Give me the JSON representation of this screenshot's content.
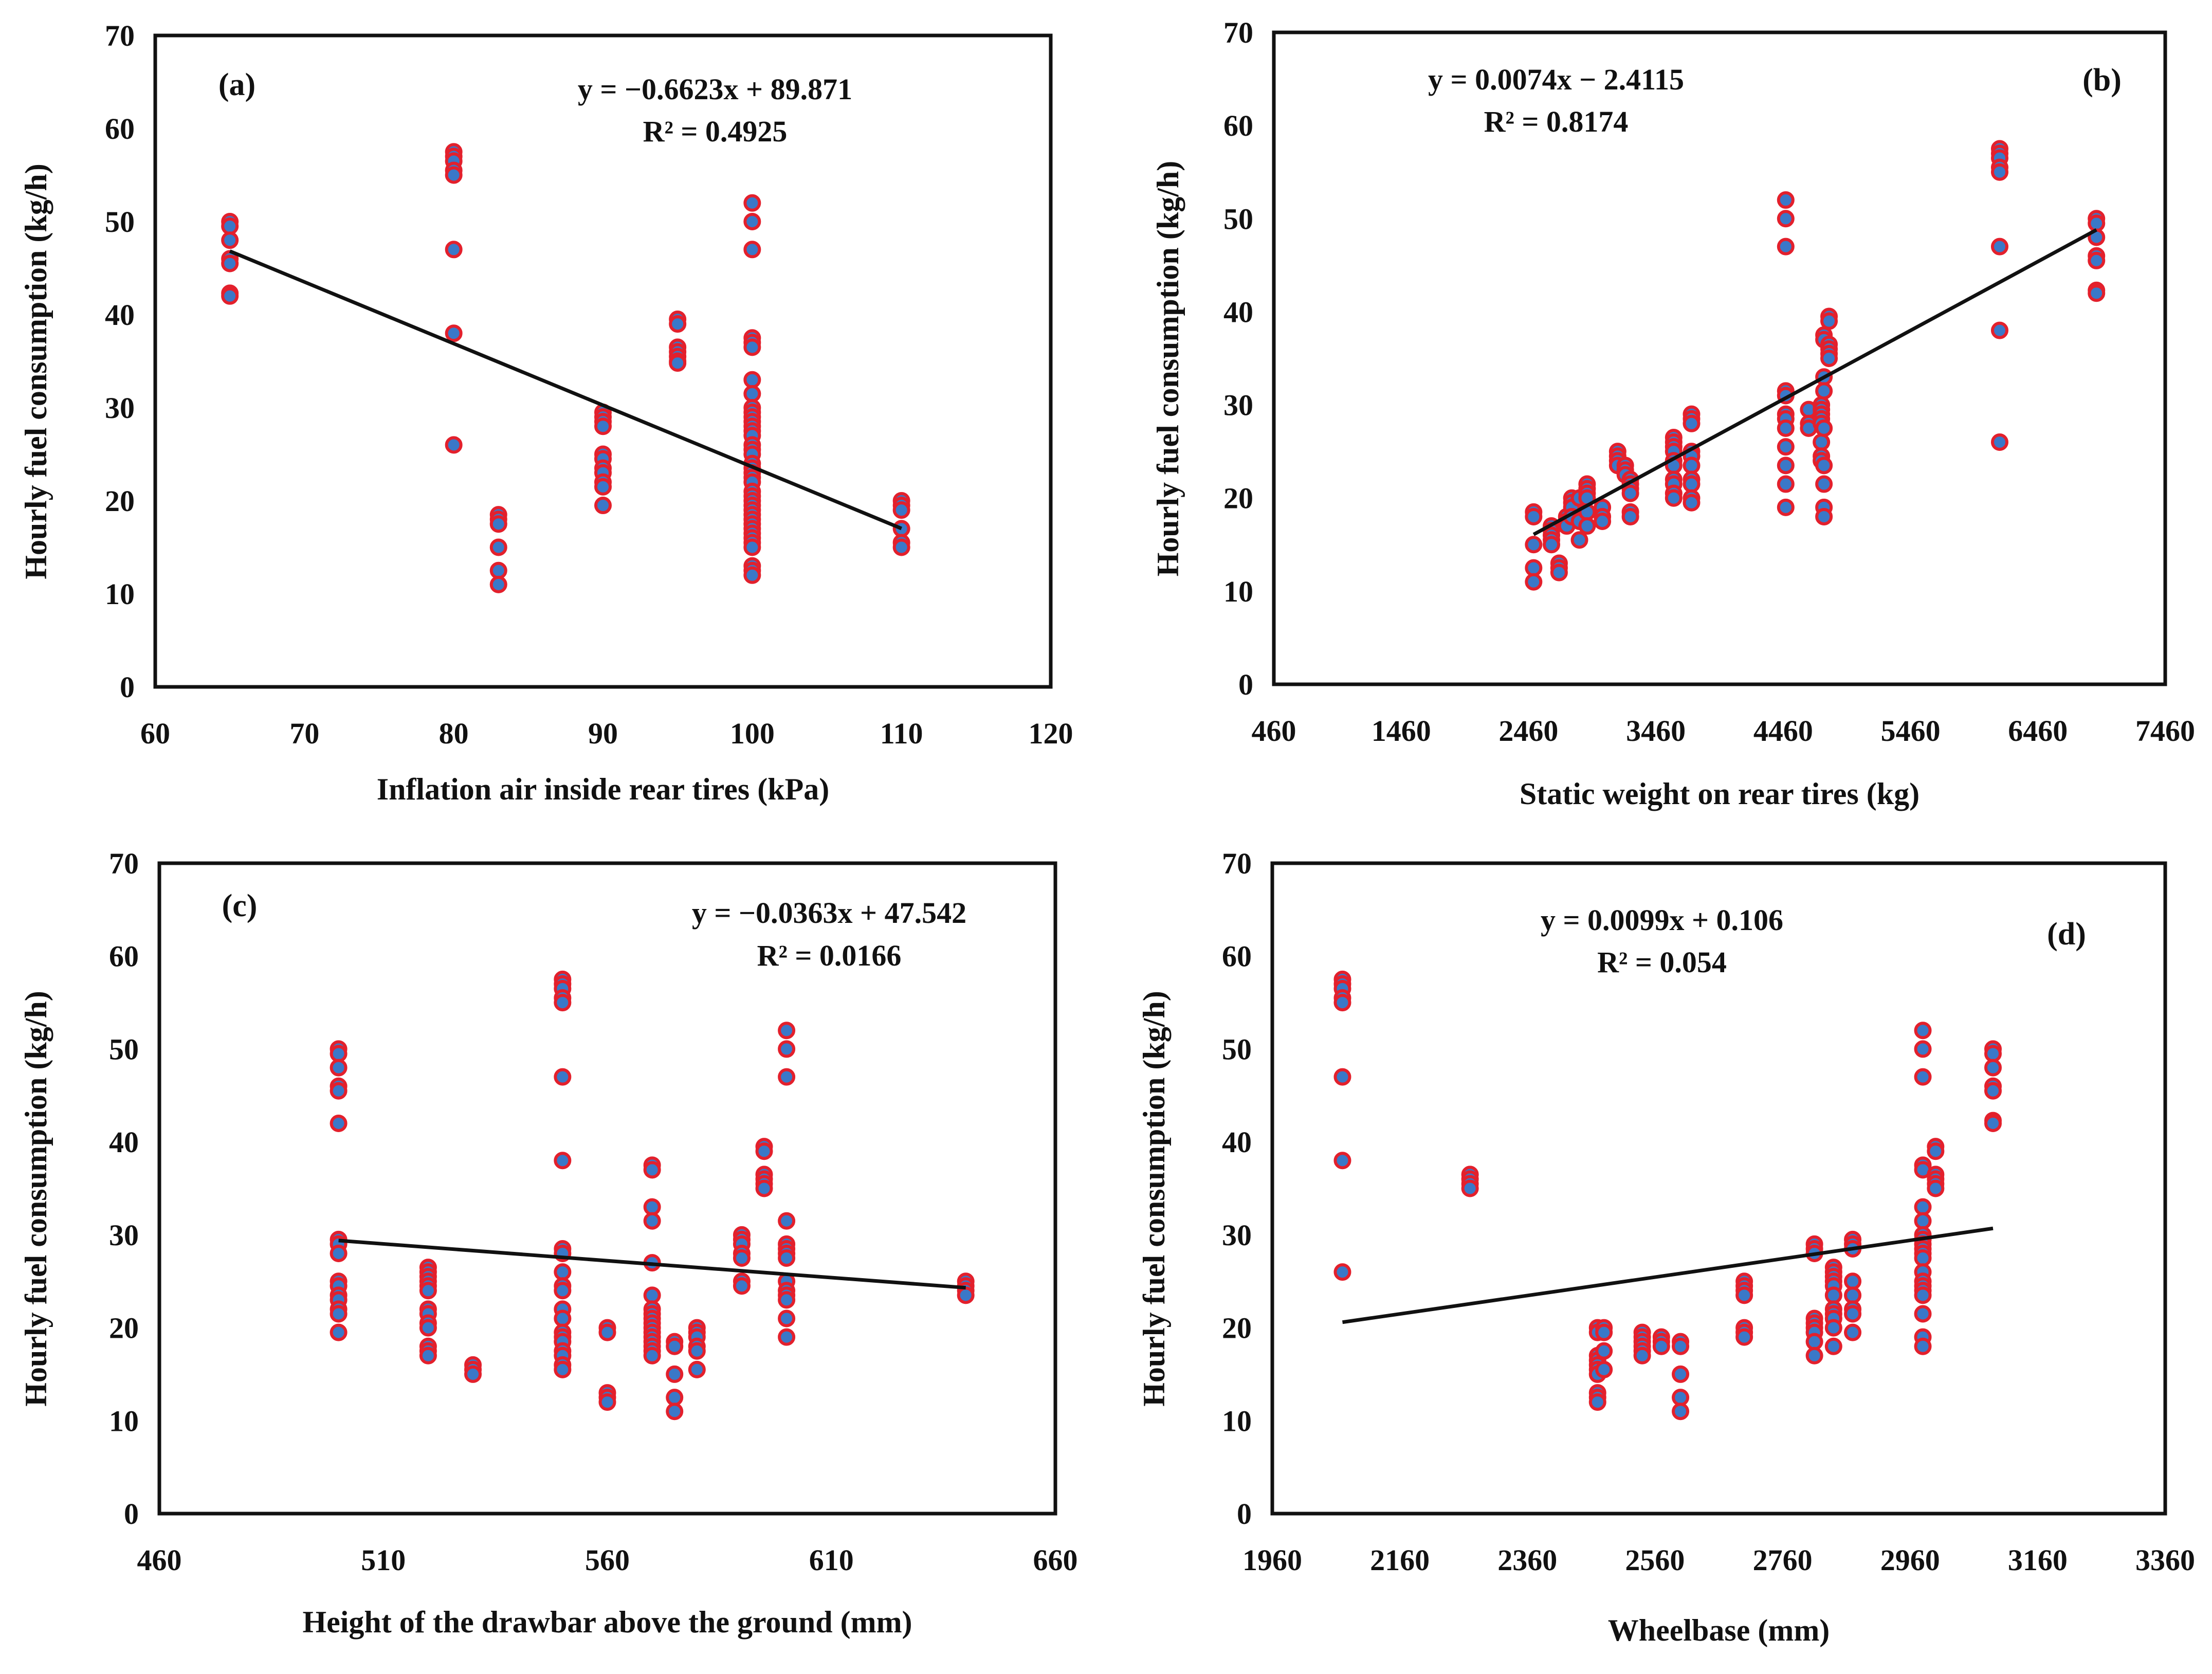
{
  "colors": {
    "marker_fill": "#3a78c8",
    "marker_stroke": "#e3202c",
    "trendline": "#111111",
    "frame": "#111111"
  },
  "chart_data": [
    {
      "type": "scatter",
      "panel_label": "(a)",
      "xlabel": "Inflation air inside rear tires (kPa)",
      "ylabel": "Hourly fuel consumption (kg/h)",
      "xlim": [
        60,
        120
      ],
      "ylim": [
        0,
        70
      ],
      "xticks": [
        "60",
        "70",
        "80",
        "90",
        "100",
        "110",
        "120"
      ],
      "yticks": [
        "0",
        "10",
        "20",
        "30",
        "40",
        "50",
        "60",
        "70"
      ],
      "equation": "y = −0.6623x + 89.871",
      "r2": "R² = 0.4925",
      "trend": {
        "slope": -0.6623,
        "intercept": 89.871,
        "x_range": [
          65,
          110
        ]
      },
      "points": [
        [
          65,
          [
            50,
            49.5,
            48,
            46,
            45.5,
            42.3,
            42
          ]
        ],
        [
          80,
          [
            57.5,
            57,
            56.5,
            55.5,
            55,
            47,
            38,
            26
          ]
        ],
        [
          83,
          [
            18.5,
            18,
            17.5,
            15,
            12.5,
            11
          ]
        ],
        [
          90,
          [
            29.5,
            29,
            28.5,
            28,
            25,
            24.5,
            23.5,
            23,
            22,
            21.5,
            19.5
          ]
        ],
        [
          95,
          [
            39.5,
            39,
            36.5,
            36,
            35.5,
            35,
            34.8
          ]
        ],
        [
          100,
          [
            52,
            50,
            47,
            37.5,
            37,
            36.5,
            33,
            31.5,
            30,
            29.5,
            29,
            28.5,
            28,
            27.5,
            27,
            26,
            25.5,
            25,
            24,
            23.5,
            23,
            22.5,
            22,
            21,
            20.5,
            20,
            19.5,
            19,
            18.5,
            18,
            17.5,
            17,
            16.5,
            16,
            15.5,
            15,
            13,
            12.5,
            12
          ]
        ],
        [
          110,
          [
            20,
            19.5,
            19,
            17,
            15.5,
            15
          ]
        ]
      ]
    },
    {
      "type": "scatter",
      "panel_label": "(b)",
      "xlabel": "Static weight on rear tires (kg)",
      "ylabel": "Hourly fuel consumption (kg/h)",
      "xlim": [
        460,
        7460
      ],
      "ylim": [
        0,
        70
      ],
      "xticks": [
        "460",
        "1460",
        "2460",
        "3460",
        "4460",
        "5460",
        "6460",
        "7460"
      ],
      "yticks": [
        "0",
        "10",
        "20",
        "30",
        "40",
        "50",
        "60",
        "70"
      ],
      "equation": "y = 0.0074x − 2.4115",
      "r2": "R² = 0.8174",
      "trend": {
        "slope": 0.0074,
        "intercept": -2.4115,
        "x_range": [
          2500,
          6920
        ]
      },
      "points": [
        [
          2500,
          [
            18.5,
            18,
            15,
            12.5,
            11
          ]
        ],
        [
          2640,
          [
            17,
            16.5,
            16,
            15.5,
            15
          ]
        ],
        [
          2700,
          [
            13,
            12.5,
            12
          ]
        ],
        [
          2760,
          [
            18,
            17.5,
            17
          ]
        ],
        [
          2800,
          [
            20,
            19.5,
            19,
            18
          ]
        ],
        [
          2860,
          [
            20,
            17.5,
            15.5
          ]
        ],
        [
          2920,
          [
            21.5,
            21,
            20.5,
            20,
            18.5,
            17
          ]
        ],
        [
          3040,
          [
            19,
            18,
            17.5
          ]
        ],
        [
          3160,
          [
            25,
            24.5,
            24,
            23.5
          ]
        ],
        [
          3220,
          [
            23.5,
            23,
            22.5
          ]
        ],
        [
          3260,
          [
            22,
            21.5,
            21,
            20.5,
            18.5,
            18
          ]
        ],
        [
          3600,
          [
            26.5,
            26,
            25.5,
            25,
            24,
            23.5,
            22,
            21.5,
            20.5,
            20
          ]
        ],
        [
          3740,
          [
            29,
            28.5,
            28,
            25,
            24.5,
            23.5,
            22,
            21.5,
            20,
            19.5
          ]
        ],
        [
          4480,
          [
            52,
            50,
            47,
            31.5,
            31,
            29,
            28.5,
            27.5,
            25.5,
            23.5,
            21.5,
            19
          ]
        ],
        [
          4660,
          [
            29.5,
            28,
            27.5
          ]
        ],
        [
          4760,
          [
            30,
            29.5,
            29,
            28.5,
            28,
            26,
            24.5,
            24
          ]
        ],
        [
          4780,
          [
            37.5,
            37,
            33,
            31.5,
            27.5,
            23.5,
            21.5,
            19,
            18
          ]
        ],
        [
          4820,
          [
            39.5,
            39,
            36.5,
            36,
            35.5,
            35
          ]
        ],
        [
          6160,
          [
            57.5,
            57,
            56.5,
            55.5,
            55,
            47,
            38,
            26
          ]
        ],
        [
          6920,
          [
            50,
            49.5,
            48,
            46,
            45.5,
            42.3,
            42
          ]
        ]
      ]
    },
    {
      "type": "scatter",
      "panel_label": "(c)",
      "xlabel": "Height of the drawbar above the ground (mm)",
      "ylabel": "Hourly fuel consumption (kg/h)",
      "xlim": [
        460,
        660
      ],
      "ylim": [
        0,
        70
      ],
      "xticks": [
        "460",
        "510",
        "560",
        "610",
        "660"
      ],
      "yticks": [
        "0",
        "10",
        "20",
        "30",
        "40",
        "50",
        "60",
        "70"
      ],
      "equation": "y = −0.0363x + 47.542",
      "r2": "R² = 0.0166",
      "trend": {
        "slope": -0.0363,
        "intercept": 47.542,
        "x_range": [
          500,
          640
        ]
      },
      "points": [
        [
          500,
          [
            50,
            49.5,
            48,
            46,
            45.5,
            42,
            29.5,
            29,
            28,
            25,
            24.5,
            23.5,
            23,
            22,
            21.5,
            19.5
          ]
        ],
        [
          520,
          [
            26.5,
            26,
            25.5,
            25,
            24.5,
            24,
            22,
            21.5,
            20.5,
            20,
            18,
            17.5,
            17
          ]
        ],
        [
          530,
          [
            16,
            15.5,
            15
          ]
        ],
        [
          550,
          [
            57.5,
            57,
            56.5,
            55.5,
            55,
            47,
            38,
            28.5,
            28,
            26,
            24.5,
            24,
            22,
            21,
            19.5,
            19,
            18.5,
            17.5,
            17,
            16,
            15.5
          ]
        ],
        [
          560,
          [
            20,
            19.5,
            13,
            12.5,
            12
          ]
        ],
        [
          570,
          [
            37.5,
            37,
            33,
            31.5,
            27,
            23.5,
            22,
            21.5,
            21,
            20.5,
            20,
            19.5,
            19,
            18.5,
            18,
            17.5,
            17
          ]
        ],
        [
          575,
          [
            18.5,
            18,
            15,
            12.5,
            11
          ]
        ],
        [
          580,
          [
            20,
            19.5,
            19,
            18,
            17.5,
            15.5
          ]
        ],
        [
          590,
          [
            30,
            29.5,
            29,
            28,
            27.5,
            25,
            24.5
          ]
        ],
        [
          595,
          [
            39.5,
            39,
            36.5,
            36,
            35.5,
            35
          ]
        ],
        [
          600,
          [
            52,
            50,
            47,
            31.5,
            29,
            28.5,
            28,
            27.5,
            25,
            24,
            23.5,
            23,
            21,
            19
          ]
        ],
        [
          640,
          [
            25,
            24.5,
            24,
            23.5
          ]
        ]
      ]
    },
    {
      "type": "scatter",
      "panel_label": "(d)",
      "xlabel": "Wheelbase (mm)",
      "ylabel": "Hourly fuel consumption (kg/h)",
      "xlim": [
        1960,
        3360
      ],
      "ylim": [
        0,
        70
      ],
      "xticks": [
        "1960",
        "2160",
        "2360",
        "2560",
        "2760",
        "2960",
        "3160",
        "3360"
      ],
      "yticks": [
        "0",
        "10",
        "20",
        "30",
        "40",
        "50",
        "60",
        "70"
      ],
      "equation": "y = 0.0099x + 0.106",
      "r2": "R² = 0.054",
      "trend": {
        "slope": 0.0099,
        "intercept": 0.106,
        "x_range": [
          2070,
          3090
        ]
      },
      "points": [
        [
          2070,
          [
            57.5,
            57,
            56.5,
            55.5,
            55,
            47,
            38,
            26
          ]
        ],
        [
          2270,
          [
            36.5,
            36,
            35.5,
            35
          ]
        ],
        [
          2470,
          [
            20,
            19.5,
            17,
            16.5,
            16,
            15.5,
            15,
            13,
            12.5,
            12
          ]
        ],
        [
          2480,
          [
            20,
            19.5,
            17.5,
            15.5
          ]
        ],
        [
          2540,
          [
            19.5,
            19,
            18.5,
            18,
            17.5,
            17
          ]
        ],
        [
          2570,
          [
            19,
            18.5,
            18
          ]
        ],
        [
          2600,
          [
            18.5,
            18,
            15,
            12.5,
            11
          ]
        ],
        [
          2700,
          [
            25,
            24.5,
            24,
            23.5,
            20,
            19.5,
            19
          ]
        ],
        [
          2810,
          [
            29,
            28.5,
            28,
            21,
            20.5,
            20,
            19.5,
            18.5,
            17
          ]
        ],
        [
          2840,
          [
            26.5,
            26,
            25.5,
            25,
            24.5,
            23.5,
            22,
            21.5,
            21,
            20,
            18
          ]
        ],
        [
          2870,
          [
            29.5,
            29,
            28.5,
            25,
            23.5,
            22,
            21.5,
            19.5
          ]
        ],
        [
          2980,
          [
            52,
            50,
            47,
            37.5,
            37,
            33,
            31.5,
            30,
            29.5,
            29,
            28.5,
            28,
            27.5,
            26,
            25,
            24.5,
            24,
            23.5,
            21.5,
            19,
            18
          ]
        ],
        [
          3000,
          [
            39.5,
            39,
            36.5,
            36,
            35.5,
            35
          ]
        ],
        [
          3090,
          [
            50,
            49.5,
            48,
            46,
            45.5,
            42.3,
            42
          ]
        ]
      ]
    }
  ]
}
